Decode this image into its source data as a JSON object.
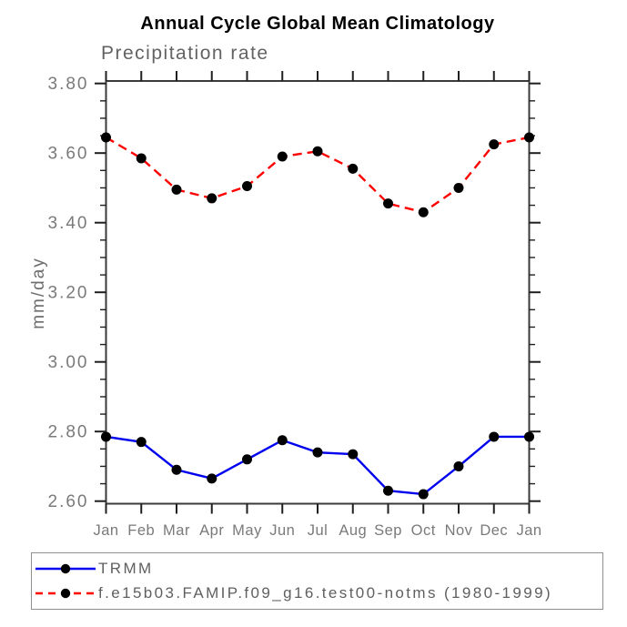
{
  "chart_data": {
    "type": "line",
    "title": "Annual Cycle Global Mean Climatology",
    "subtitle": "Precipitation rate",
    "ylabel": "mm/day",
    "xlabel": "",
    "categories": [
      "Jan",
      "Feb",
      "Mar",
      "Apr",
      "May",
      "Jun",
      "Jul",
      "Aug",
      "Sep",
      "Oct",
      "Nov",
      "Dec",
      "Jan"
    ],
    "series": [
      {
        "name": "TRMM",
        "color": "#0000ee",
        "line_style": "solid",
        "marker": "filled-circle",
        "marker_color": "#000000",
        "values": [
          2.785,
          2.77,
          2.69,
          2.665,
          2.72,
          2.775,
          2.74,
          2.735,
          2.63,
          2.62,
          2.7,
          2.785,
          2.785
        ]
      },
      {
        "name": "f.e15b03.FAMIP.f09_g16.test00-notms (1980-1999)",
        "color": "#ff0000",
        "line_style": "dashed",
        "marker": "filled-circle",
        "marker_color": "#000000",
        "values": [
          3.645,
          3.585,
          3.495,
          3.47,
          3.505,
          3.59,
          3.605,
          3.555,
          3.455,
          3.43,
          3.5,
          3.625,
          3.645
        ]
      }
    ],
    "ylim": [
      2.6,
      3.8
    ],
    "ytick_step": 0.2,
    "yminor_step": 0.05,
    "ytick_format_decimals": 2,
    "grid": false,
    "legend_position": "bottom-left",
    "frame_color": "#3a3a3a",
    "tick_color": "#1f1f1f",
    "tick_label_color": "#7a7a7a"
  }
}
